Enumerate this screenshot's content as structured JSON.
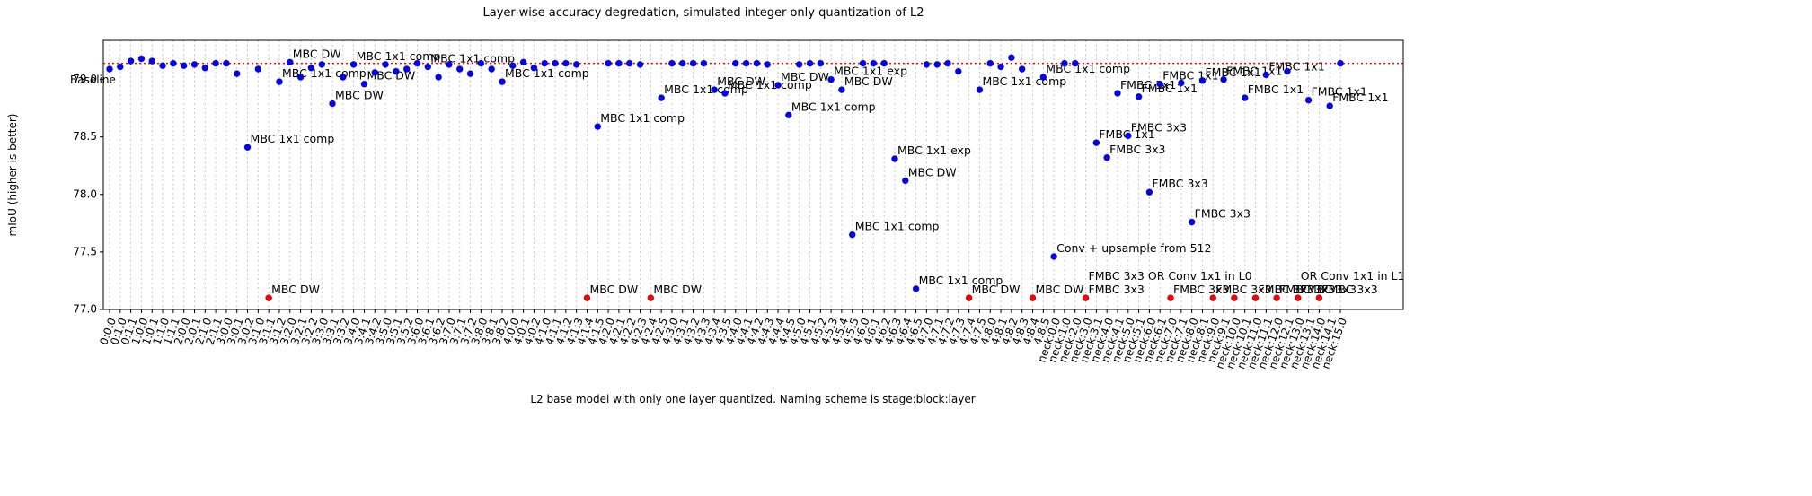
{
  "chart_data": {
    "type": "scatter",
    "title": "Layer-wise accuracy degredation, simulated integer-only quantization of L2",
    "x_label": "L2 base model with only one layer quantized. Naming scheme is stage:block:layer",
    "y_label": "mIoU (higher is better)",
    "categories": [
      "0:0:0",
      "0:1:0",
      "0:1:1",
      "1:0:0",
      "1:0:1",
      "1:1:0",
      "1:1:1",
      "2:0:0",
      "2:0:1",
      "2:1:0",
      "2:1:1",
      "3:0:0",
      "3:0:1",
      "3:0:2",
      "3:1:0",
      "3:1:1",
      "3:1:2",
      "3:2:0",
      "3:2:1",
      "3:2:2",
      "3:3:0",
      "3:3:1",
      "3:3:2",
      "3:4:0",
      "3:4:1",
      "3:4:2",
      "3:5:0",
      "3:5:1",
      "3:5:2",
      "3:6:0",
      "3:6:1",
      "3:6:2",
      "3:7:0",
      "3:7:1",
      "3:7:2",
      "3:8:0",
      "3:8:1",
      "3:8:2",
      "4:0:0",
      "4:0:1",
      "4:0:2",
      "4:1:0",
      "4:1:1",
      "4:1:2",
      "4:1:3",
      "4:1:4",
      "4:1:5",
      "4:2:0",
      "4:2:1",
      "4:2:2",
      "4:2:3",
      "4:2:4",
      "4:2:5",
      "4:3:0",
      "4:3:1",
      "4:3:2",
      "4:3:3",
      "4:3:4",
      "4:3:5",
      "4:4:0",
      "4:4:1",
      "4:4:2",
      "4:4:3",
      "4:4:4",
      "4:4:5",
      "4:5:0",
      "4:5:1",
      "4:5:2",
      "4:5:3",
      "4:5:4",
      "4:5:5",
      "4:6:0",
      "4:6:1",
      "4:6:2",
      "4:6:3",
      "4:6:4",
      "4:6:5",
      "4:7:0",
      "4:7:1",
      "4:7:2",
      "4:7:3",
      "4:7:4",
      "4:7:5",
      "4:8:0",
      "4:8:1",
      "4:8:2",
      "4:8:3",
      "4:8:4",
      "4:8:5",
      "neck:0:0",
      "neck:1:0",
      "neck:2:0",
      "neck:3:0",
      "neck:3:1",
      "neck:4:0",
      "neck:4:1",
      "neck:5:0",
      "neck:5:1",
      "neck:6:0",
      "neck:6:1",
      "neck:7:0",
      "neck:7:1",
      "neck:8:0",
      "neck:8:1",
      "neck:9:0",
      "neck:9:1",
      "neck:10:0",
      "neck:10:1",
      "neck:11:0",
      "neck:11:1",
      "neck:12:0",
      "neck:12:1",
      "neck:13:0",
      "neck:13:1",
      "neck:14:0",
      "neck:14:1",
      "neck:15:0"
    ],
    "values": [
      79.09,
      79.11,
      79.16,
      79.18,
      79.16,
      79.12,
      79.14,
      79.12,
      79.13,
      79.1,
      79.14,
      79.14,
      79.05,
      78.41,
      79.09,
      77.1,
      78.98,
      79.15,
      79.02,
      79.1,
      79.13,
      78.79,
      79.02,
      79.13,
      78.96,
      79.06,
      79.13,
      79.07,
      79.09,
      79.14,
      79.11,
      79.02,
      79.13,
      79.09,
      79.05,
      79.14,
      79.09,
      78.98,
      79.12,
      79.15,
      79.1,
      79.14,
      79.14,
      79.14,
      79.13,
      77.1,
      78.59,
      79.14,
      79.14,
      79.14,
      79.13,
      77.1,
      78.84,
      79.14,
      79.14,
      79.14,
      79.14,
      78.91,
      78.88,
      79.14,
      79.14,
      79.14,
      79.13,
      78.95,
      78.69,
      79.13,
      79.14,
      79.14,
      79.0,
      78.91,
      77.65,
      79.14,
      79.14,
      79.14,
      78.31,
      78.12,
      77.18,
      79.13,
      79.13,
      79.14,
      79.07,
      77.1,
      78.91,
      79.14,
      79.11,
      79.19,
      79.09,
      77.1,
      79.02,
      77.46,
      79.14,
      79.14,
      77.1,
      78.45,
      78.32,
      78.88,
      78.51,
      78.85,
      78.02,
      78.96,
      77.1,
      78.97,
      77.76,
      78.99,
      77.1,
      79.0,
      77.1,
      78.84,
      77.1,
      79.04,
      77.1,
      79.07,
      77.1,
      78.82,
      77.1,
      78.77,
      79.14
    ],
    "point_colors": [
      "#0000ff",
      "#0000ff",
      "#0000ff",
      "#0000ff",
      "#0000ff",
      "#0000ff",
      "#0000ff",
      "#0000ff",
      "#0000ff",
      "#0000ff",
      "#0000ff",
      "#0000ff",
      "#0000ff",
      "#0000ff",
      "#0000ff",
      "#ff0000",
      "#0000ff",
      "#0000ff",
      "#0000ff",
      "#0000ff",
      "#0000ff",
      "#0000ff",
      "#0000ff",
      "#0000ff",
      "#0000ff",
      "#0000ff",
      "#0000ff",
      "#0000ff",
      "#0000ff",
      "#0000ff",
      "#0000ff",
      "#0000ff",
      "#0000ff",
      "#0000ff",
      "#0000ff",
      "#0000ff",
      "#0000ff",
      "#0000ff",
      "#0000ff",
      "#0000ff",
      "#0000ff",
      "#0000ff",
      "#0000ff",
      "#0000ff",
      "#0000ff",
      "#ff0000",
      "#0000ff",
      "#0000ff",
      "#0000ff",
      "#0000ff",
      "#0000ff",
      "#ff0000",
      "#0000ff",
      "#0000ff",
      "#0000ff",
      "#0000ff",
      "#0000ff",
      "#0000ff",
      "#0000ff",
      "#0000ff",
      "#0000ff",
      "#0000ff",
      "#0000ff",
      "#0000ff",
      "#0000ff",
      "#0000ff",
      "#0000ff",
      "#0000ff",
      "#0000ff",
      "#0000ff",
      "#0000ff",
      "#0000ff",
      "#0000ff",
      "#0000ff",
      "#0000ff",
      "#0000ff",
      "#0000ff",
      "#0000ff",
      "#0000ff",
      "#0000ff",
      "#0000ff",
      "#ff0000",
      "#0000ff",
      "#0000ff",
      "#0000ff",
      "#0000ff",
      "#0000ff",
      "#ff0000",
      "#0000ff",
      "#0000ff",
      "#0000ff",
      "#0000ff",
      "#ff0000",
      "#0000ff",
      "#0000ff",
      "#0000ff",
      "#0000ff",
      "#0000ff",
      "#0000ff",
      "#0000ff",
      "#ff0000",
      "#0000ff",
      "#0000ff",
      "#0000ff",
      "#ff0000",
      "#0000ff",
      "#ff0000",
      "#0000ff",
      "#ff0000",
      "#0000ff",
      "#ff0000",
      "#0000ff",
      "#ff0000",
      "#0000ff",
      "#ff0000",
      "#0000ff",
      "#0000ff"
    ],
    "annotations": [
      null,
      null,
      null,
      null,
      null,
      null,
      null,
      null,
      null,
      null,
      null,
      null,
      null,
      "MBC 1x1 comp",
      null,
      "MBC DW",
      "MBC 1x1 comp",
      "MBC DW",
      null,
      null,
      null,
      "MBC DW",
      null,
      "MBC 1x1 comp",
      "MBC DW",
      null,
      null,
      null,
      null,
      null,
      "MBC 1x1 comp",
      null,
      null,
      null,
      null,
      null,
      null,
      "MBC 1x1 comp",
      null,
      null,
      null,
      null,
      null,
      null,
      null,
      "MBC DW",
      "MBC 1x1 comp",
      null,
      null,
      null,
      null,
      "MBC DW",
      "MBC 1x1 comp",
      null,
      null,
      null,
      null,
      "MBC DW",
      "MBC 1x1 comp",
      null,
      null,
      null,
      null,
      "MBC DW",
      "MBC 1x1 comp",
      null,
      null,
      null,
      "MBC 1x1 exp",
      "MBC DW",
      "MBC 1x1 comp",
      null,
      null,
      null,
      "MBC 1x1 exp",
      "MBC DW",
      "MBC 1x1 comp",
      null,
      null,
      null,
      null,
      "MBC DW",
      "MBC 1x1 comp",
      null,
      null,
      null,
      null,
      "MBC DW",
      "MBC 1x1 comp",
      "Conv + upsample from 512",
      null,
      null,
      [
        "FMBC 3x3",
        "FMBC 3x3 OR Conv 1x1 in L0"
      ],
      "FMBC 1x1",
      "FMBC 3x3",
      "FMBC 1x1",
      "FMBC 3x3",
      "FMBC 1x1",
      "FMBC 3x3",
      "FMBC 1x1",
      "FMBC 3x3",
      null,
      "FMBC 3x3",
      "FMBC 1x1",
      "FMBC 3x3",
      "FMBC 1x1",
      null,
      "FMBC 1x1",
      "FMBC 3x3",
      "FMBC 1x1",
      "FMBC 3x3",
      null,
      [
        "FMBC 3x3",
        "OR Conv 1x1 in L1"
      ],
      "FMBC 1x1",
      "FMBC 3x3",
      "FMBC 1x1",
      null
    ],
    "baseline": {
      "value": 79.14,
      "label": "Baseline",
      "color": "#ff0000"
    },
    "ylim": [
      77.0,
      79.34
    ],
    "yticks": [
      {
        "value": 77,
        "label": "77.0"
      },
      77.5,
      {
        "value": 78,
        "label": "78.0"
      },
      78.5,
      {
        "value": 79,
        "label": "79.0"
      }
    ],
    "x_grid": true
  }
}
